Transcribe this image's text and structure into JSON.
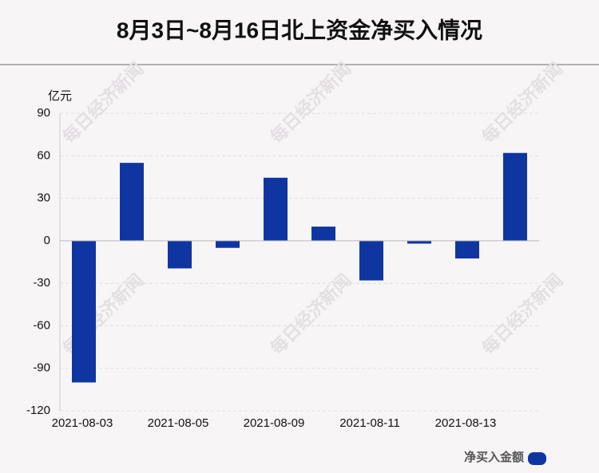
{
  "chart_data": {
    "type": "bar",
    "title": "8月3日~8月16日北上资金净买入情况",
    "y_unit": "亿元",
    "watermark": "每日经济新闻",
    "categories": [
      "2021-08-03",
      null,
      "2021-08-05",
      null,
      "2021-08-09",
      null,
      "2021-08-11",
      null,
      "2021-08-13",
      null
    ],
    "series": [
      {
        "name": "净买入金额",
        "color": "#0f36a0",
        "values": [
          -100,
          55,
          -19.5,
          -5,
          44.5,
          10,
          -28,
          -2,
          -12.5,
          62
        ]
      }
    ],
    "ylim": [
      -120,
      90
    ],
    "yticks": [
      -120,
      -90,
      -60,
      -30,
      0,
      30,
      60,
      90
    ],
    "grid": true,
    "legend": "bottom-right"
  }
}
